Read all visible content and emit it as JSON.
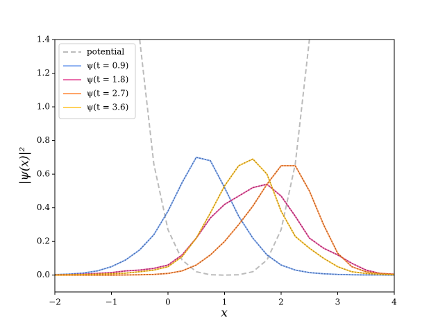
{
  "chart_data": {
    "type": "line",
    "xlabel": "x",
    "ylabel": "|ψ(x)|²",
    "x": [
      -2,
      -1.75,
      -1.5,
      -1.25,
      -1,
      -0.75,
      -0.5,
      -0.25,
      0,
      0.25,
      0.5,
      0.75,
      1,
      1.25,
      1.5,
      1.75,
      2,
      2.25,
      2.5,
      2.75,
      3,
      3.25,
      3.5,
      3.75,
      4
    ],
    "series": [
      {
        "name": "potential",
        "color": "#bbbbbb",
        "dash": true,
        "x": [
          -0.5,
          -0.25,
          0,
          0.25,
          0.5,
          0.75,
          1,
          1.25,
          1.5,
          1.75,
          2,
          2.25,
          2.5
        ],
        "values": [
          1.4,
          0.66,
          0.27,
          0.09,
          0.02,
          0.002,
          0,
          0.002,
          0.02,
          0.09,
          0.27,
          0.66,
          1.4
        ]
      },
      {
        "name": "ψ(t = 0.9)",
        "color": "#6495ed",
        "values": [
          0.003,
          0.006,
          0.012,
          0.025,
          0.05,
          0.09,
          0.15,
          0.24,
          0.38,
          0.55,
          0.7,
          0.68,
          0.52,
          0.35,
          0.22,
          0.12,
          0.06,
          0.03,
          0.015,
          0.008,
          0.004,
          0.002,
          0.001,
          0.001,
          0
        ]
      },
      {
        "name": "ψ(t = 1.8)",
        "color": "#e0338a",
        "values": [
          0.002,
          0.003,
          0.005,
          0.01,
          0.015,
          0.025,
          0.03,
          0.04,
          0.06,
          0.12,
          0.22,
          0.34,
          0.42,
          0.47,
          0.52,
          0.54,
          0.47,
          0.35,
          0.22,
          0.16,
          0.12,
          0.07,
          0.03,
          0.01,
          0.005
        ]
      },
      {
        "name": "ψ(t = 2.7)",
        "color": "#ff7f2a",
        "values": [
          0,
          0,
          0,
          0,
          0,
          0.001,
          0.002,
          0.004,
          0.01,
          0.025,
          0.06,
          0.12,
          0.2,
          0.3,
          0.41,
          0.54,
          0.65,
          0.65,
          0.5,
          0.3,
          0.13,
          0.05,
          0.02,
          0.01,
          0.005
        ]
      },
      {
        "name": "ψ(t = 3.6)",
        "color": "#ffbf1a",
        "values": [
          0.001,
          0.002,
          0.003,
          0.005,
          0.008,
          0.012,
          0.02,
          0.03,
          0.05,
          0.11,
          0.22,
          0.37,
          0.53,
          0.65,
          0.69,
          0.6,
          0.38,
          0.23,
          0.16,
          0.1,
          0.05,
          0.02,
          0.01,
          0.005,
          0.002
        ]
      }
    ],
    "xlim": [
      -2,
      4
    ],
    "xticks": [
      {
        "value": -2,
        "label": "−2"
      },
      {
        "value": -1,
        "label": "−1"
      },
      0,
      1,
      2,
      3,
      4
    ],
    "ylim": [
      -0.1,
      1.4
    ],
    "yticks": [
      {
        "value": 0,
        "label": "0.0"
      },
      0.2,
      0.4,
      0.6,
      0.8,
      {
        "value": 1,
        "label": "1.0"
      },
      1.2,
      1.4
    ],
    "legend": "upper left"
  }
}
